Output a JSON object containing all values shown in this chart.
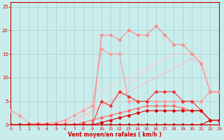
{
  "xlabel": "Vent moyen/en rafales ( km/h )",
  "xlim": [
    0,
    23
  ],
  "ylim": [
    0,
    26
  ],
  "yticks": [
    0,
    5,
    10,
    15,
    20,
    25
  ],
  "xticks": [
    0,
    1,
    2,
    3,
    4,
    5,
    6,
    7,
    8,
    9,
    10,
    11,
    12,
    13,
    14,
    15,
    16,
    17,
    18,
    19,
    20,
    21,
    22,
    23
  ],
  "bg_color": "#c9eded",
  "grid_color": "#aacccc",
  "series": [
    {
      "x": [
        0,
        1,
        2,
        3,
        4,
        5,
        6,
        7,
        8,
        9,
        10,
        11,
        12,
        13,
        14,
        15,
        16,
        17,
        18,
        19,
        20,
        21,
        22,
        23
      ],
      "y": [
        0,
        0,
        0,
        0,
        0,
        0,
        0.5,
        1,
        2,
        3,
        4,
        5,
        6,
        7,
        8,
        9,
        10,
        11,
        12,
        13,
        14,
        13,
        7,
        7
      ],
      "color": "#ffbbbb",
      "linewidth": 0.8,
      "marker": null,
      "zorder": 1
    },
    {
      "x": [
        0,
        1,
        2,
        3,
        4,
        5,
        6,
        7,
        8,
        9,
        10,
        11,
        12,
        13,
        14,
        15,
        16,
        17,
        18,
        19,
        20,
        21,
        22,
        23
      ],
      "y": [
        0,
        0,
        0,
        0,
        0,
        0,
        0,
        0.5,
        1.5,
        2.5,
        4,
        5.5,
        7,
        8.5,
        10,
        11.5,
        13,
        14,
        15,
        15,
        15,
        14,
        7,
        7
      ],
      "color": "#ffcccc",
      "linewidth": 0.8,
      "marker": null,
      "zorder": 1
    },
    {
      "x": [
        0,
        1,
        2,
        3,
        4,
        5,
        6,
        7,
        8,
        9,
        10,
        11,
        12,
        13,
        14,
        15,
        16,
        17,
        18,
        19,
        20,
        21,
        22,
        23
      ],
      "y": [
        0,
        0,
        0,
        0,
        0,
        0,
        1,
        2,
        3.5,
        5,
        7,
        8,
        9,
        10,
        11,
        12,
        13,
        14,
        15,
        15,
        15,
        14,
        7,
        7
      ],
      "color": "#ffd8d8",
      "linewidth": 0.8,
      "marker": null,
      "zorder": 1
    },
    {
      "x": [
        0,
        1,
        2,
        3,
        4,
        5,
        6,
        7,
        8,
        9,
        10,
        11,
        12,
        13,
        14,
        15,
        16,
        17,
        18,
        19,
        20,
        21,
        22,
        23
      ],
      "y": [
        3,
        2,
        0.3,
        0.3,
        0.3,
        0.5,
        1,
        2,
        3,
        4,
        16,
        15,
        15,
        5,
        5,
        5,
        5,
        5,
        5,
        5,
        5,
        5,
        7,
        7
      ],
      "color": "#ff9999",
      "linewidth": 0.8,
      "marker": "D",
      "markersize": 2,
      "zorder": 3
    },
    {
      "x": [
        0,
        1,
        2,
        3,
        4,
        5,
        6,
        7,
        8,
        9,
        10,
        11,
        12,
        13,
        14,
        15,
        16,
        17,
        18,
        19,
        20,
        21,
        22,
        23
      ],
      "y": [
        0,
        0,
        0,
        0,
        0,
        0,
        0,
        0,
        0,
        0,
        19,
        19,
        18,
        20,
        19,
        19,
        21,
        19,
        17,
        17,
        15,
        13,
        7,
        7
      ],
      "color": "#ff8888",
      "linewidth": 0.8,
      "marker": "D",
      "markersize": 2,
      "zorder": 3
    },
    {
      "x": [
        0,
        1,
        2,
        3,
        4,
        5,
        6,
        7,
        8,
        9,
        10,
        11,
        12,
        13,
        14,
        15,
        16,
        17,
        18,
        19,
        20,
        21,
        22,
        23
      ],
      "y": [
        0,
        0,
        0,
        0,
        0,
        0,
        0,
        0,
        0,
        0,
        5,
        4,
        7,
        6,
        5,
        5,
        7,
        7,
        7,
        5,
        5,
        3,
        1,
        1
      ],
      "color": "#ee3333",
      "linewidth": 0.8,
      "marker": "D",
      "markersize": 2,
      "zorder": 4
    },
    {
      "x": [
        0,
        1,
        2,
        3,
        4,
        5,
        6,
        7,
        8,
        9,
        10,
        11,
        12,
        13,
        14,
        15,
        16,
        17,
        18,
        19,
        20,
        21,
        22,
        23
      ],
      "y": [
        0,
        0,
        0,
        0,
        0,
        0,
        0,
        0,
        0.5,
        1,
        1.5,
        2,
        2.5,
        3,
        3.5,
        4,
        4,
        4,
        4,
        3.5,
        3,
        3,
        1,
        1
      ],
      "color": "#ff6666",
      "linewidth": 0.8,
      "marker": "D",
      "markersize": 2,
      "zorder": 4
    },
    {
      "x": [
        0,
        1,
        2,
        3,
        4,
        5,
        6,
        7,
        8,
        9,
        10,
        11,
        12,
        13,
        14,
        15,
        16,
        17,
        18,
        19,
        20,
        21,
        22,
        23
      ],
      "y": [
        0,
        0,
        0,
        0,
        0,
        0,
        0,
        0,
        0,
        0,
        0,
        0,
        0,
        0,
        0,
        0,
        0,
        0,
        0,
        0,
        0,
        0,
        1,
        1
      ],
      "color": "#cc0000",
      "linewidth": 0.8,
      "marker": "D",
      "markersize": 2,
      "zorder": 5
    },
    {
      "x": [
        0,
        1,
        2,
        3,
        4,
        5,
        6,
        7,
        8,
        9,
        10,
        11,
        12,
        13,
        14,
        15,
        16,
        17,
        18,
        19,
        20,
        21,
        22,
        23
      ],
      "y": [
        0,
        0,
        0,
        0,
        0,
        0,
        0,
        0,
        0,
        0,
        0.5,
        1,
        1.5,
        2,
        2.5,
        3,
        3,
        3,
        3,
        3,
        3,
        3,
        1,
        1
      ],
      "color": "#dd0000",
      "linewidth": 0.8,
      "marker": "D",
      "markersize": 2,
      "zorder": 5
    }
  ]
}
